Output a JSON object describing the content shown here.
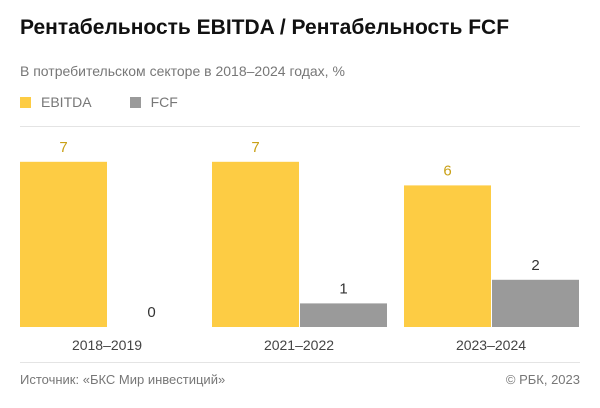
{
  "colors": {
    "ebitda": "#fdcc44",
    "fcf": "#9a9a9a",
    "ebitda_label": "#c9a016",
    "fcf_label": "#333333",
    "axis": "#444444"
  },
  "chart_data": {
    "type": "bar",
    "title": "Рентабельность EBITDA / Рентабельность FCF",
    "subtitle": "В потребительском секторе в 2018–2024 годах, %",
    "categories": [
      "2018–2019",
      "2021–2022",
      "2023–2024"
    ],
    "series": [
      {
        "name": "EBITDA",
        "values": [
          7,
          7,
          6
        ],
        "labels": [
          "7",
          "7",
          "6"
        ]
      },
      {
        "name": "FCF",
        "values": [
          0,
          1,
          2
        ],
        "labels": [
          "0",
          "1",
          "2"
        ]
      }
    ],
    "ylim": [
      0,
      7
    ],
    "legend": "top-left",
    "grid": false
  },
  "footer": {
    "source": "Источник: «БКС Мир инвестиций»",
    "copyright": "© РБК, 2023"
  }
}
